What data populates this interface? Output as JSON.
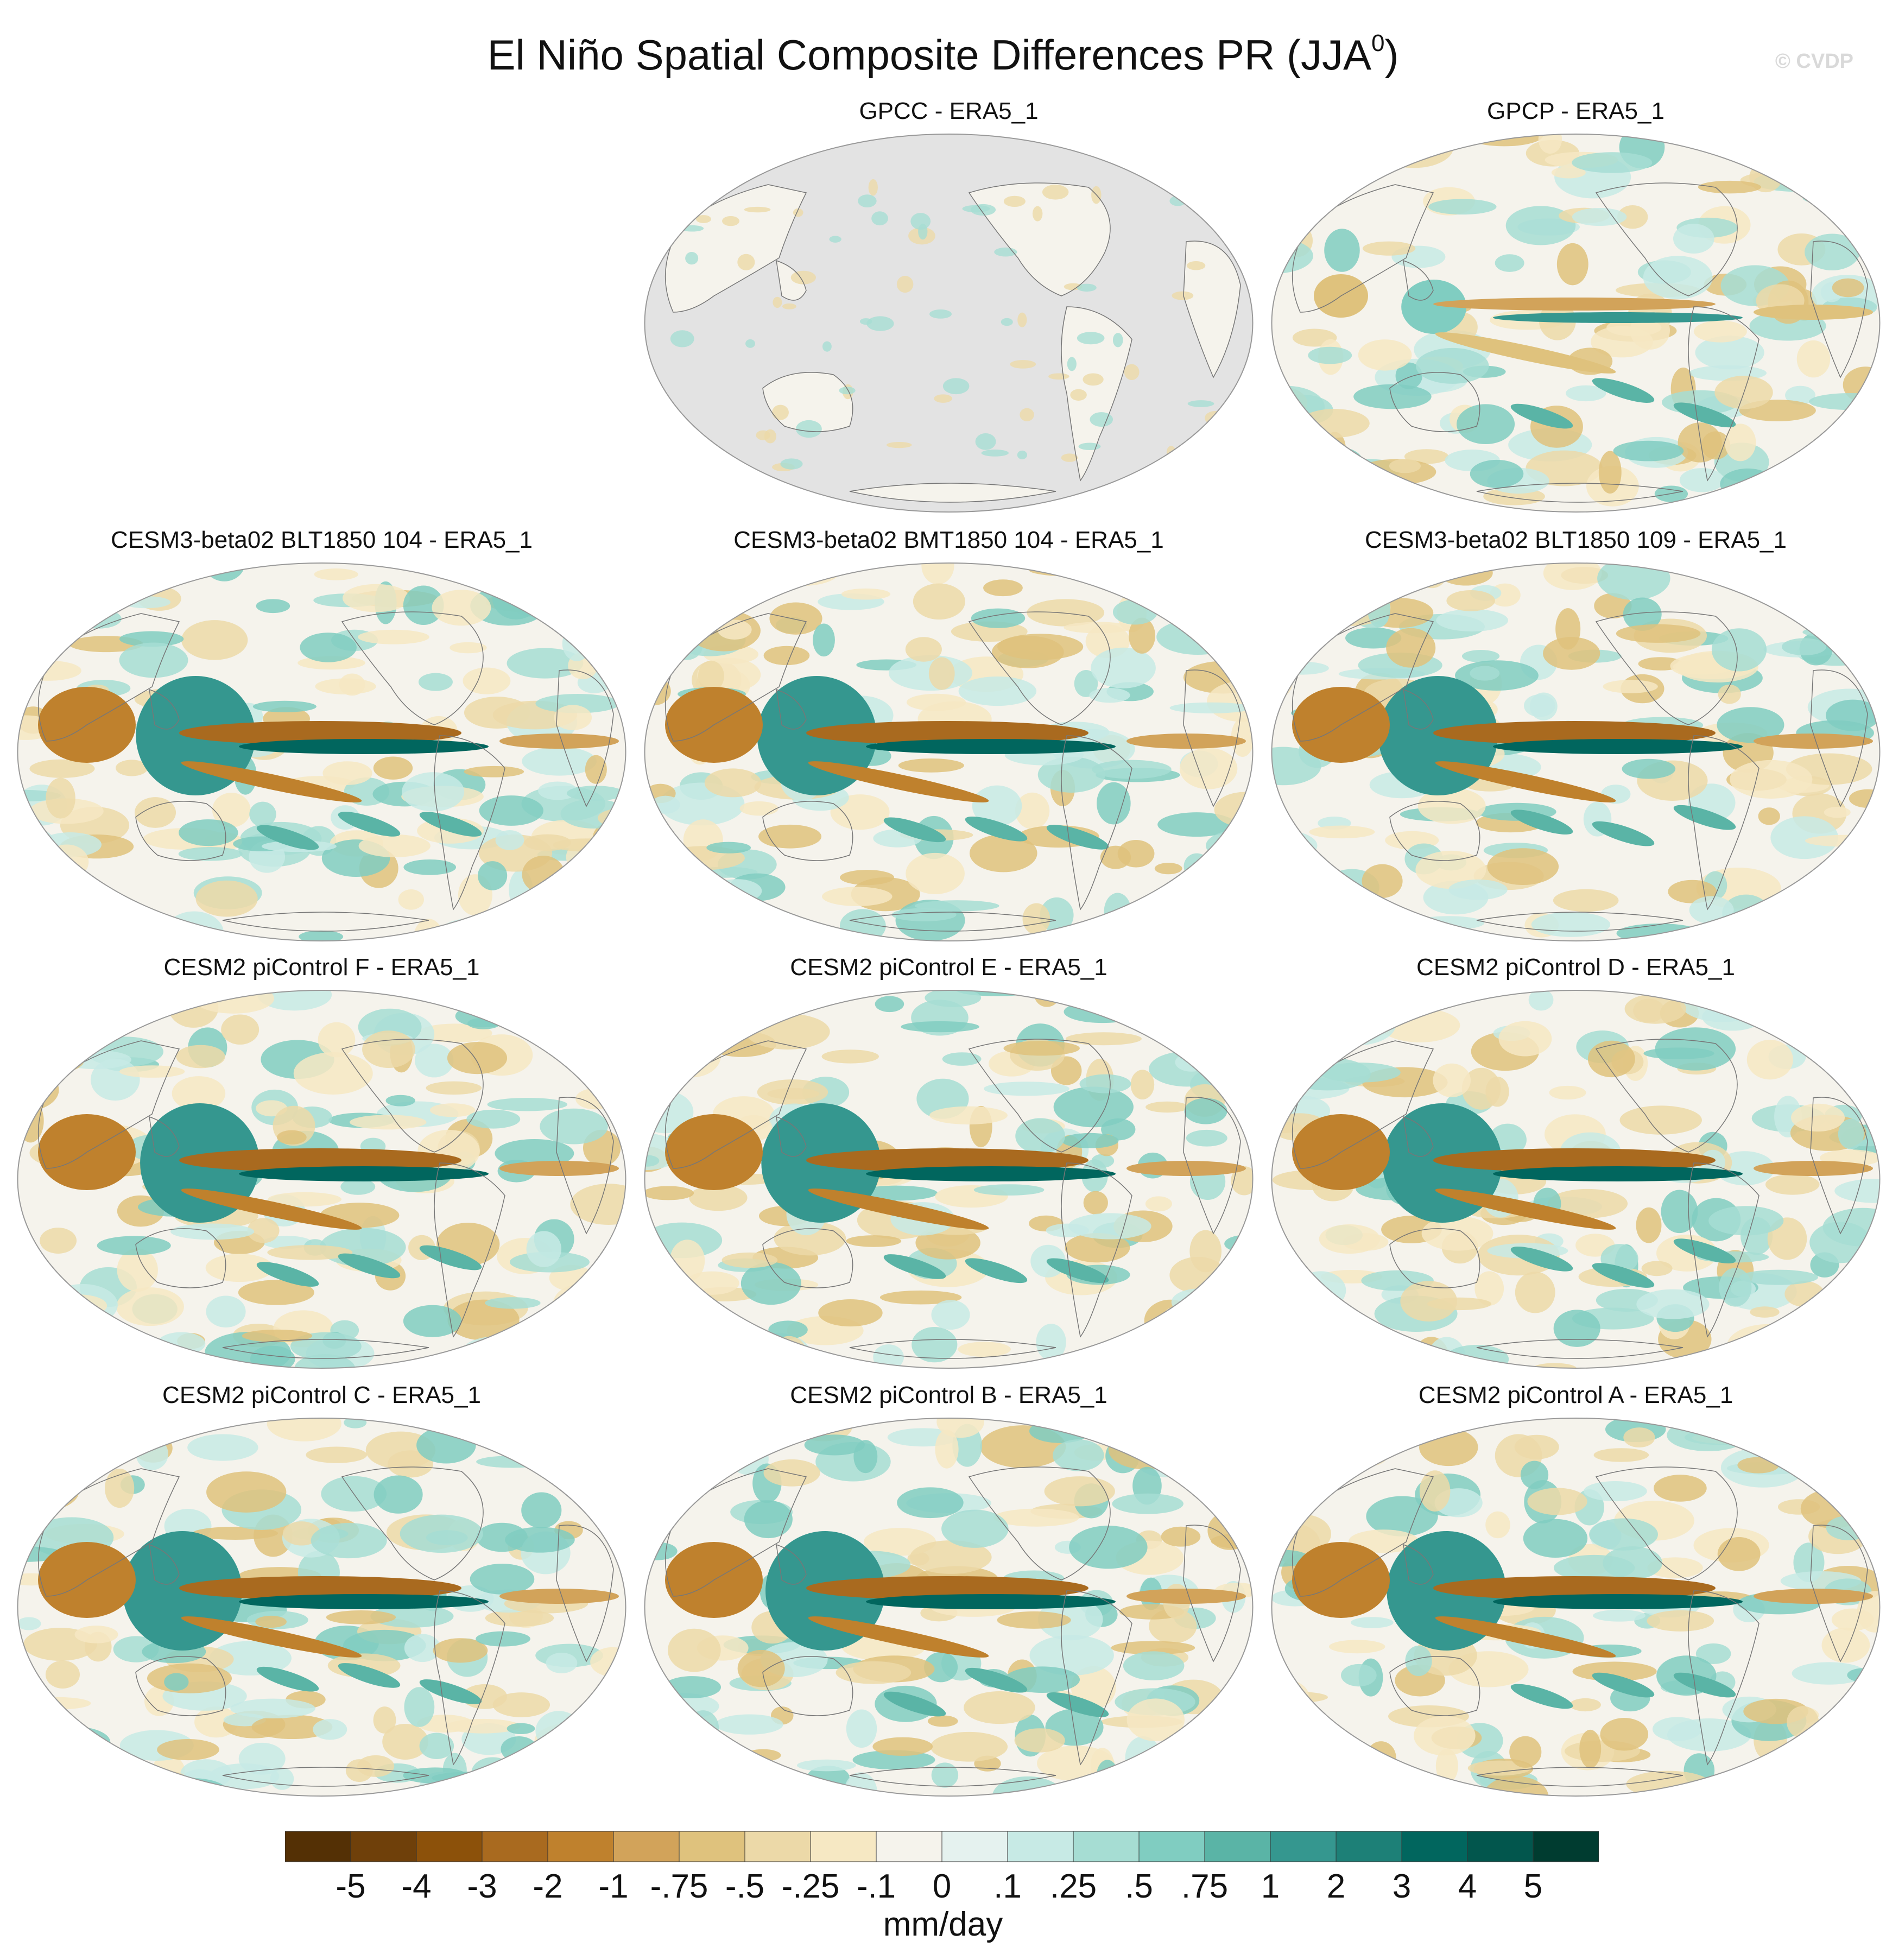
{
  "figure": {
    "title": "El Niño Spatial Composite Differences PR (JJA",
    "title_superscript": "0",
    "title_close": ")",
    "watermark": "© CVDP"
  },
  "panels": [
    {
      "title": "GPCC - ERA5_1",
      "style": "land-only"
    },
    {
      "title": "GPCP - ERA5_1",
      "style": "obs"
    },
    {
      "title": "CESM3-beta02 BLT1850 104 - ERA5_1",
      "style": "model"
    },
    {
      "title": "CESM3-beta02 BMT1850 104 - ERA5_1",
      "style": "model"
    },
    {
      "title": "CESM3-beta02 BLT1850 109 - ERA5_1",
      "style": "model"
    },
    {
      "title": "CESM2 piControl F - ERA5_1",
      "style": "model"
    },
    {
      "title": "CESM2 piControl E - ERA5_1",
      "style": "model"
    },
    {
      "title": "CESM2 piControl D - ERA5_1",
      "style": "model"
    },
    {
      "title": "CESM2 piControl C - ERA5_1",
      "style": "model"
    },
    {
      "title": "CESM2 piControl B - ERA5_1",
      "style": "model"
    },
    {
      "title": "CESM2 piControl A - ERA5_1",
      "style": "model"
    }
  ],
  "colorbar": {
    "units": "mm/day",
    "labels": [
      "-5",
      "-4",
      "-3",
      "-2",
      "-1",
      "-.75",
      "-.5",
      "-.25",
      "-.1",
      "0",
      ".1",
      ".25",
      ".5",
      ".75",
      "1",
      "2",
      "3",
      "4",
      "5"
    ],
    "colors": [
      "#543005",
      "#6f400a",
      "#8c510a",
      "#a96a1f",
      "#bf812d",
      "#d2a35a",
      "#dfc27d",
      "#ecd9a8",
      "#f6e8c3",
      "#f5f3ec",
      "#e5f2ef",
      "#c7eae5",
      "#a6ddd3",
      "#80cdc1",
      "#5ab4a6",
      "#35978f",
      "#1d8077",
      "#01665e",
      "#02564d",
      "#003c30"
    ]
  },
  "colors": {
    "missing": "#e3e3e3",
    "coast": "#777777"
  }
}
